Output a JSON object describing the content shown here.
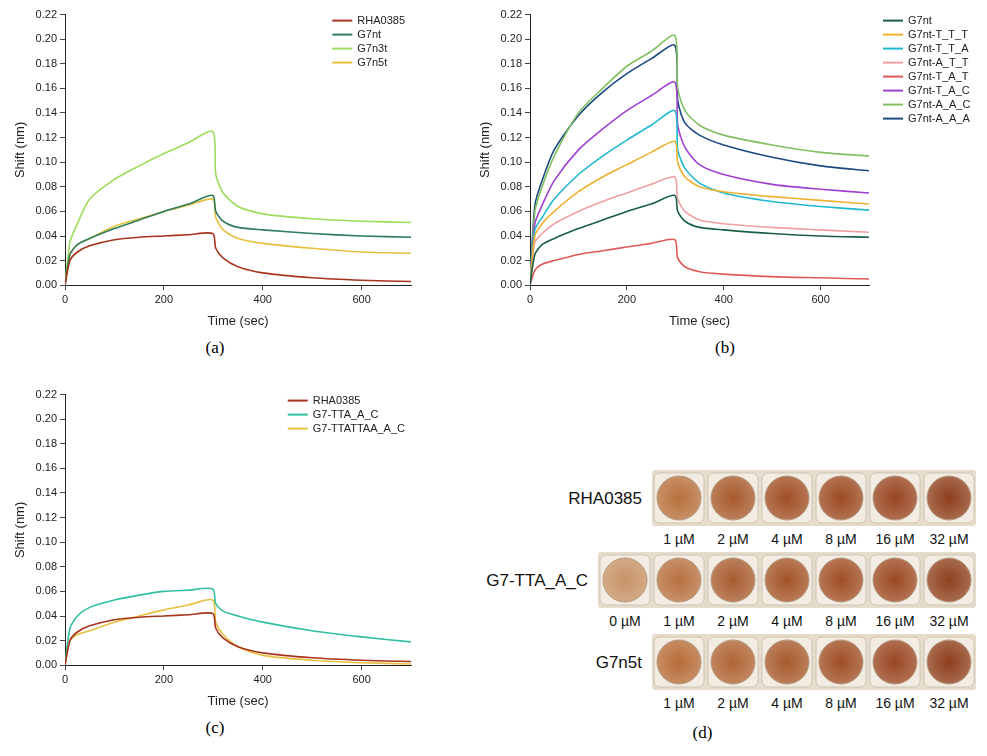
{
  "chart_data": [
    {
      "type": "line",
      "caption": "(a)",
      "x_label": "Time (sec)",
      "y_label": "Shift (nm)",
      "legend": "upper right",
      "grid": false,
      "xlim": [
        0,
        700
      ],
      "xticks": [
        0,
        200,
        400,
        600
      ],
      "ylim": [
        0,
        0.22
      ],
      "yticks": [
        {
          "value": 0,
          "label": "0.00"
        },
        {
          "value": 0.02,
          "label": "0.02"
        },
        {
          "value": 0.04,
          "label": "0.04"
        },
        {
          "value": 0.06,
          "label": "0.06"
        },
        {
          "value": 0.08,
          "label": "0.08"
        },
        {
          "value": 0.1,
          "label": "0.10"
        },
        {
          "value": 0.12,
          "label": "0.12"
        },
        {
          "value": 0.14,
          "label": "0.14"
        },
        {
          "value": 0.16,
          "label": "0.16"
        },
        {
          "value": 0.18,
          "label": "0.18"
        },
        {
          "value": 0.2,
          "label": "0.20"
        },
        {
          "value": 0.22,
          "label": "0.22"
        }
      ],
      "x": [
        0,
        10,
        25,
        50,
        100,
        150,
        200,
        250,
        299,
        305,
        320,
        350,
        400,
        500,
        600,
        700
      ],
      "series": [
        {
          "name": "RHA0385",
          "color": "#a8341e",
          "values": [
            0,
            0.02,
            0.027,
            0.032,
            0.037,
            0.039,
            0.04,
            0.041,
            0.042,
            0.03,
            0.022,
            0.015,
            0.01,
            0.006,
            0.004,
            0.003
          ]
        },
        {
          "name": "G7nt",
          "color": "#2e7d5b",
          "values": [
            0,
            0.025,
            0.033,
            0.038,
            0.046,
            0.053,
            0.06,
            0.066,
            0.073,
            0.06,
            0.052,
            0.047,
            0.045,
            0.042,
            0.04,
            0.039
          ]
        },
        {
          "name": "G7n3t",
          "color": "#9ddc5a",
          "values": [
            0,
            0.035,
            0.05,
            0.07,
            0.086,
            0.097,
            0.107,
            0.116,
            0.125,
            0.09,
            0.075,
            0.064,
            0.058,
            0.054,
            0.052,
            0.051
          ]
        },
        {
          "name": "G7n5t",
          "color": "#e8c040",
          "values": [
            0,
            0.025,
            0.033,
            0.038,
            0.048,
            0.054,
            0.06,
            0.065,
            0.07,
            0.055,
            0.045,
            0.038,
            0.034,
            0.03,
            0.027,
            0.026
          ]
        }
      ]
    },
    {
      "type": "line",
      "caption": "(b)",
      "x_label": "Time (sec)",
      "y_label": "Shift (nm)",
      "legend": "right",
      "grid": false,
      "xlim": [
        0,
        700
      ],
      "xticks": [
        0,
        200,
        400,
        600
      ],
      "ylim": [
        0,
        0.22
      ],
      "yticks": [
        {
          "value": 0,
          "label": "0.00"
        },
        {
          "value": 0.02,
          "label": "0.02"
        },
        {
          "value": 0.04,
          "label": "0.04"
        },
        {
          "value": 0.06,
          "label": "0.06"
        },
        {
          "value": 0.08,
          "label": "0.08"
        },
        {
          "value": 0.1,
          "label": "0.10"
        },
        {
          "value": 0.12,
          "label": "0.12"
        },
        {
          "value": 0.14,
          "label": "0.14"
        },
        {
          "value": 0.16,
          "label": "0.16"
        },
        {
          "value": 0.18,
          "label": "0.18"
        },
        {
          "value": 0.2,
          "label": "0.20"
        },
        {
          "value": 0.22,
          "label": "0.22"
        }
      ],
      "x": [
        0,
        10,
        25,
        50,
        100,
        150,
        200,
        250,
        299,
        305,
        320,
        350,
        400,
        500,
        600,
        700
      ],
      "series": [
        {
          "name": "G7nt",
          "color": "#1a5e4a",
          "values": [
            0,
            0.025,
            0.033,
            0.038,
            0.046,
            0.053,
            0.06,
            0.066,
            0.073,
            0.06,
            0.052,
            0.047,
            0.045,
            0.042,
            0.04,
            0.039
          ]
        },
        {
          "name": "G7nt-T_T_T",
          "color": "#f0b030",
          "values": [
            0,
            0.04,
            0.05,
            0.06,
            0.076,
            0.088,
            0.098,
            0.108,
            0.117,
            0.1,
            0.088,
            0.08,
            0.076,
            0.072,
            0.069,
            0.066
          ]
        },
        {
          "name": "G7nt-T_T_A",
          "color": "#20b8d0",
          "values": [
            0,
            0.045,
            0.055,
            0.07,
            0.09,
            0.105,
            0.118,
            0.13,
            0.142,
            0.11,
            0.095,
            0.083,
            0.075,
            0.068,
            0.064,
            0.061
          ]
        },
        {
          "name": "G7nt-A_T_T",
          "color": "#f0a0a0",
          "values": [
            0,
            0.035,
            0.042,
            0.05,
            0.06,
            0.068,
            0.075,
            0.082,
            0.088,
            0.07,
            0.06,
            0.053,
            0.05,
            0.047,
            0.045,
            0.043
          ]
        },
        {
          "name": "G7nt-T_A_T",
          "color": "#e05a5a",
          "values": [
            0,
            0.012,
            0.017,
            0.02,
            0.025,
            0.028,
            0.031,
            0.034,
            0.037,
            0.022,
            0.015,
            0.011,
            0.009,
            0.007,
            0.006,
            0.005
          ]
        },
        {
          "name": "G7nt-T_A_C",
          "color": "#a040d0",
          "values": [
            0,
            0.05,
            0.065,
            0.085,
            0.11,
            0.127,
            0.142,
            0.154,
            0.165,
            0.13,
            0.112,
            0.098,
            0.09,
            0.082,
            0.078,
            0.075
          ]
        },
        {
          "name": "G7nt-A_A_C",
          "color": "#80c060",
          "values": [
            0,
            0.06,
            0.08,
            0.105,
            0.14,
            0.16,
            0.178,
            0.19,
            0.203,
            0.16,
            0.142,
            0.13,
            0.122,
            0.114,
            0.108,
            0.105
          ]
        },
        {
          "name": "G7nt-A_A_A",
          "color": "#1a4a80",
          "values": [
            0,
            0.065,
            0.085,
            0.11,
            0.138,
            0.157,
            0.172,
            0.184,
            0.195,
            0.15,
            0.132,
            0.122,
            0.114,
            0.104,
            0.097,
            0.093
          ]
        }
      ]
    },
    {
      "type": "line",
      "caption": "(c)",
      "x_label": "Time (sec)",
      "y_label": "Shift (nm)",
      "legend": "upper right",
      "grid": false,
      "xlim": [
        0,
        700
      ],
      "xticks": [
        0,
        200,
        400,
        600
      ],
      "ylim": [
        0,
        0.22
      ],
      "yticks": [
        {
          "value": 0,
          "label": "0.00"
        },
        {
          "value": 0.02,
          "label": "0.02"
        },
        {
          "value": 0.04,
          "label": "0.04"
        },
        {
          "value": 0.06,
          "label": "0.06"
        },
        {
          "value": 0.08,
          "label": "0.08"
        },
        {
          "value": 0.1,
          "label": "0.10"
        },
        {
          "value": 0.12,
          "label": "0.12"
        },
        {
          "value": 0.14,
          "label": "0.14"
        },
        {
          "value": 0.16,
          "label": "0.16"
        },
        {
          "value": 0.18,
          "label": "0.18"
        },
        {
          "value": 0.2,
          "label": "0.20"
        },
        {
          "value": 0.22,
          "label": "0.22"
        }
      ],
      "x": [
        0,
        10,
        25,
        50,
        100,
        150,
        200,
        250,
        299,
        305,
        320,
        350,
        400,
        500,
        600,
        700
      ],
      "series": [
        {
          "name": "RHA0385",
          "color": "#a8341e",
          "values": [
            0,
            0.02,
            0.027,
            0.032,
            0.037,
            0.039,
            0.04,
            0.041,
            0.042,
            0.03,
            0.022,
            0.015,
            0.01,
            0.006,
            0.004,
            0.003
          ]
        },
        {
          "name": "G7-TTA_A_C",
          "color": "#30c0a0",
          "values": [
            0,
            0.03,
            0.04,
            0.047,
            0.053,
            0.057,
            0.06,
            0.061,
            0.062,
            0.05,
            0.044,
            0.04,
            0.035,
            0.028,
            0.023,
            0.019
          ]
        },
        {
          "name": "G7-TTATTAA_A_C",
          "color": "#e8c040",
          "values": [
            0,
            0.02,
            0.025,
            0.028,
            0.035,
            0.04,
            0.045,
            0.049,
            0.053,
            0.035,
            0.025,
            0.015,
            0.008,
            0.004,
            0.002,
            0.001
          ]
        }
      ]
    }
  ],
  "plate": {
    "caption": "(d)",
    "rows": [
      {
        "label": "RHA0385",
        "wells": [
          "1 µM",
          "2 µM",
          "4 µM",
          "8 µM",
          "16 µM",
          "32 µM"
        ],
        "colors": [
          "#b8703c",
          "#a85a2c",
          "#a04e24",
          "#9c4a22",
          "#984420",
          "#8e3e1c"
        ]
      },
      {
        "label": "G7-TTA_A_C",
        "wells": [
          "0 µM",
          "1 µM",
          "2 µM",
          "4 µM",
          "8 µM",
          "16 µM",
          "32 µM"
        ],
        "colors": [
          "#c89468",
          "#b87040",
          "#a85c30",
          "#a45428",
          "#a04e24",
          "#9c4a22",
          "#8e401e"
        ]
      },
      {
        "label": "G7n5t",
        "wells": [
          "1 µM",
          "2 µM",
          "4 µM",
          "8 µM",
          "16 µM",
          "32 µM"
        ],
        "colors": [
          "#b86c38",
          "#b06434",
          "#a85a2c",
          "#a04e24",
          "#9a4622",
          "#8e3e1c"
        ]
      }
    ]
  }
}
